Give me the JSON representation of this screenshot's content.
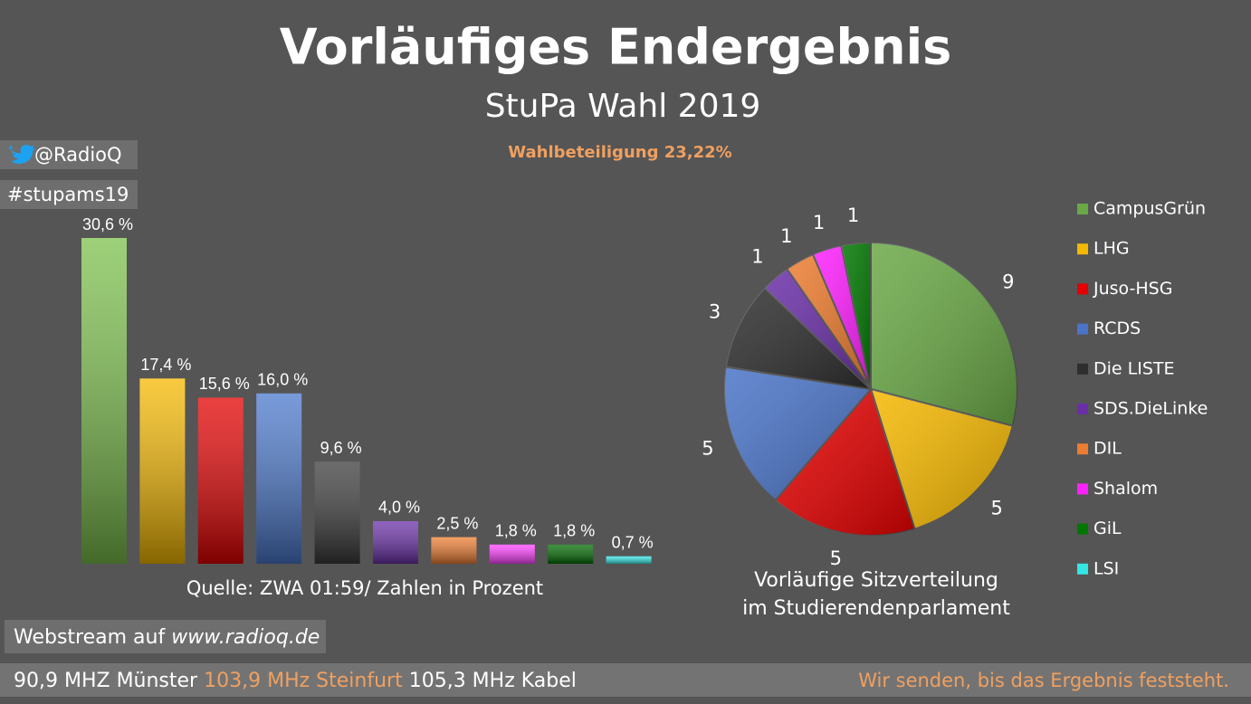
{
  "header": {
    "title": "Vorläufiges Endergebnis",
    "subtitle": "StuPa Wahl 2019",
    "turnout": "Wahlbeteiligung 23,22%"
  },
  "social": {
    "twitter": "@RadioQ",
    "hashtag": "#stupams19"
  },
  "chart_data": [
    {
      "type": "bar",
      "categories": [
        null,
        null,
        null,
        null,
        null,
        null,
        null,
        null,
        null,
        null
      ],
      "values": [
        30.6,
        17.4,
        15.6,
        16.0,
        9.6,
        4.0,
        2.5,
        1.8,
        1.8,
        0.7
      ],
      "value_labels": [
        "30,6 %",
        "17,4 %",
        "15,6 %",
        "16,0 %",
        "9,6 %",
        "4,0 %",
        "2,5 %",
        "1,8 %",
        "1,8 %",
        "0,7 %"
      ],
      "colors": [
        "#7cc04c",
        "#f5b800",
        "#e40000",
        "#4a78cc",
        "#3a3a3a",
        "#6a2fa8",
        "#ed7d31",
        "#ff40ff",
        "#006a00",
        "#33e6e6"
      ],
      "source": "Quelle: ZWA 01:59/ Zahlen in Prozent"
    },
    {
      "type": "pie",
      "title": [
        "Vorläufige Sitzverteilung",
        "im Studierendenparlament"
      ],
      "categories": [
        "CampusGrün",
        "LHG",
        "Juso-HSG",
        "RCDS",
        "Die LISTE",
        "SDS.DieLinke",
        "DIL",
        "Shalom",
        "GiL",
        "LSI"
      ],
      "values": [
        9,
        5,
        5,
        5,
        3,
        1,
        1,
        1,
        1,
        0
      ],
      "colors": [
        "#6aa846",
        "#f5b800",
        "#e40000",
        "#4a74c8",
        "#2e2e2e",
        "#6a2fa8",
        "#ed7d31",
        "#ff20ff",
        "#007800",
        "#33e6e6"
      ],
      "legend": "right"
    }
  ],
  "footer": {
    "webstream": "Webstream auf",
    "url": "www.radioq.de",
    "frequencies": [
      "90,9 MHZ Münster",
      "103,9 MHz Steinfurt",
      "105,3 MHz Kabel"
    ],
    "note": "Wir senden, bis das Ergebnis feststeht."
  }
}
